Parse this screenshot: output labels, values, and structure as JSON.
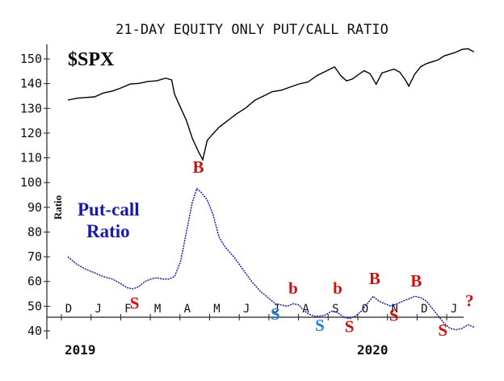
{
  "chart_data": {
    "type": "line",
    "title": "21-DAY EQUITY ONLY PUT/CALL RATIO",
    "y_ticks": [
      40,
      50,
      60,
      70,
      80,
      90,
      100,
      110,
      120,
      130,
      140,
      150
    ],
    "y_axis_label": "Ratio",
    "x_month_labels": [
      "D",
      "J",
      "F",
      "M",
      "A",
      "M",
      "J",
      "J",
      "A",
      "S",
      "O",
      "N",
      "D",
      "J"
    ],
    "year_labels": [
      "2019",
      "2020"
    ],
    "series": [
      {
        "name": "$SPX",
        "color": "#000000",
        "points": [
          [
            0,
            133
          ],
          [
            0.3,
            134
          ],
          [
            0.6,
            134.5
          ],
          [
            0.9,
            135
          ],
          [
            1.2,
            136
          ],
          [
            1.5,
            137
          ],
          [
            1.8,
            138.5
          ],
          [
            2.1,
            139.5
          ],
          [
            2.4,
            140
          ],
          [
            2.7,
            141
          ],
          [
            3.0,
            141.5
          ],
          [
            3.3,
            142
          ],
          [
            3.5,
            141.5
          ],
          [
            3.6,
            136
          ],
          [
            3.8,
            130
          ],
          [
            4.0,
            125
          ],
          [
            4.2,
            118
          ],
          [
            4.4,
            113
          ],
          [
            4.55,
            109
          ],
          [
            4.7,
            117
          ],
          [
            4.9,
            120
          ],
          [
            5.1,
            122
          ],
          [
            5.4,
            125
          ],
          [
            5.7,
            128
          ],
          [
            6.0,
            130.5
          ],
          [
            6.3,
            133
          ],
          [
            6.6,
            135
          ],
          [
            6.9,
            137
          ],
          [
            7.2,
            137
          ],
          [
            7.5,
            138.5
          ],
          [
            7.8,
            140
          ],
          [
            8.1,
            141
          ],
          [
            8.4,
            143
          ],
          [
            8.7,
            145
          ],
          [
            9.0,
            147
          ],
          [
            9.2,
            143
          ],
          [
            9.4,
            141
          ],
          [
            9.6,
            142
          ],
          [
            9.8,
            144
          ],
          [
            10.0,
            145
          ],
          [
            10.2,
            144
          ],
          [
            10.4,
            140
          ],
          [
            10.6,
            144
          ],
          [
            10.8,
            145
          ],
          [
            11.0,
            146
          ],
          [
            11.2,
            145
          ],
          [
            11.4,
            141
          ],
          [
            11.5,
            139
          ],
          [
            11.7,
            144
          ],
          [
            11.9,
            146.5
          ],
          [
            12.1,
            148
          ],
          [
            12.3,
            149
          ],
          [
            12.5,
            150
          ],
          [
            12.7,
            151
          ],
          [
            12.9,
            152
          ],
          [
            13.1,
            153
          ],
          [
            13.3,
            153.5
          ],
          [
            13.5,
            154
          ],
          [
            13.7,
            153
          ]
        ]
      },
      {
        "name": "Put-call Ratio",
        "color": "#1a1aa6",
        "points": [
          [
            0,
            70
          ],
          [
            0.3,
            67
          ],
          [
            0.6,
            65
          ],
          [
            0.9,
            63.5
          ],
          [
            1.2,
            62
          ],
          [
            1.5,
            61
          ],
          [
            1.8,
            59
          ],
          [
            2.0,
            57.5
          ],
          [
            2.2,
            57
          ],
          [
            2.4,
            58
          ],
          [
            2.6,
            60
          ],
          [
            2.8,
            61
          ],
          [
            3.0,
            61.5
          ],
          [
            3.2,
            61
          ],
          [
            3.4,
            61
          ],
          [
            3.6,
            62
          ],
          [
            3.8,
            68
          ],
          [
            4.0,
            80
          ],
          [
            4.2,
            92
          ],
          [
            4.35,
            97.5
          ],
          [
            4.5,
            96
          ],
          [
            4.7,
            93
          ],
          [
            4.9,
            87
          ],
          [
            5.1,
            78
          ],
          [
            5.3,
            74
          ],
          [
            5.6,
            70
          ],
          [
            5.9,
            65
          ],
          [
            6.2,
            60
          ],
          [
            6.5,
            56
          ],
          [
            6.8,
            53
          ],
          [
            7.0,
            51
          ],
          [
            7.2,
            50.5
          ],
          [
            7.4,
            50
          ],
          [
            7.6,
            51
          ],
          [
            7.8,
            50.5
          ],
          [
            7.9,
            49
          ],
          [
            8.1,
            47
          ],
          [
            8.3,
            46
          ],
          [
            8.5,
            46
          ],
          [
            8.7,
            46.5
          ],
          [
            8.9,
            48
          ],
          [
            9.1,
            47.5
          ],
          [
            9.3,
            45.5
          ],
          [
            9.5,
            45
          ],
          [
            9.7,
            46
          ],
          [
            9.9,
            48
          ],
          [
            10.1,
            51
          ],
          [
            10.3,
            54
          ],
          [
            10.5,
            52
          ],
          [
            10.7,
            51
          ],
          [
            10.9,
            50
          ],
          [
            11.1,
            51
          ],
          [
            11.3,
            52
          ],
          [
            11.5,
            53
          ],
          [
            11.7,
            54
          ],
          [
            11.9,
            53.5
          ],
          [
            12.1,
            52
          ],
          [
            12.3,
            49
          ],
          [
            12.5,
            46
          ],
          [
            12.7,
            43
          ],
          [
            12.9,
            41
          ],
          [
            13.1,
            40.5
          ],
          [
            13.3,
            41
          ],
          [
            13.5,
            42.5
          ],
          [
            13.7,
            41.5
          ]
        ]
      }
    ],
    "labels": {
      "spx": "$SPX",
      "pc_line1": "Put-call",
      "pc_line2": "Ratio"
    },
    "annotations": [
      {
        "text": "S",
        "x": 2.25,
        "y": 49,
        "color": "#cc1111",
        "size": 21
      },
      {
        "text": "B",
        "x": 4.4,
        "y": 104,
        "color": "#cc1111",
        "size": 21
      },
      {
        "text": "S",
        "x": 7.0,
        "y": 44.5,
        "color": "#1e7fd6",
        "size": 21
      },
      {
        "text": "b",
        "x": 7.6,
        "y": 55,
        "color": "#cc1111",
        "size": 21
      },
      {
        "text": "S",
        "x": 8.5,
        "y": 40,
        "color": "#1e7fd6",
        "size": 21
      },
      {
        "text": "b",
        "x": 9.1,
        "y": 55,
        "color": "#cc1111",
        "size": 21
      },
      {
        "text": "S",
        "x": 9.5,
        "y": 39.5,
        "color": "#cc1111",
        "size": 21
      },
      {
        "text": "B",
        "x": 10.35,
        "y": 59,
        "color": "#cc1111",
        "size": 21
      },
      {
        "text": "S",
        "x": 11.0,
        "y": 44,
        "color": "#cc1111",
        "size": 21
      },
      {
        "text": "B",
        "x": 11.75,
        "y": 58,
        "color": "#cc1111",
        "size": 21
      },
      {
        "text": "S",
        "x": 12.65,
        "y": 38,
        "color": "#cc1111",
        "size": 21
      },
      {
        "text": "?",
        "x": 13.55,
        "y": 50,
        "color": "#cc1111",
        "size": 21
      }
    ],
    "grid": false,
    "ylim": [
      40,
      155
    ]
  }
}
